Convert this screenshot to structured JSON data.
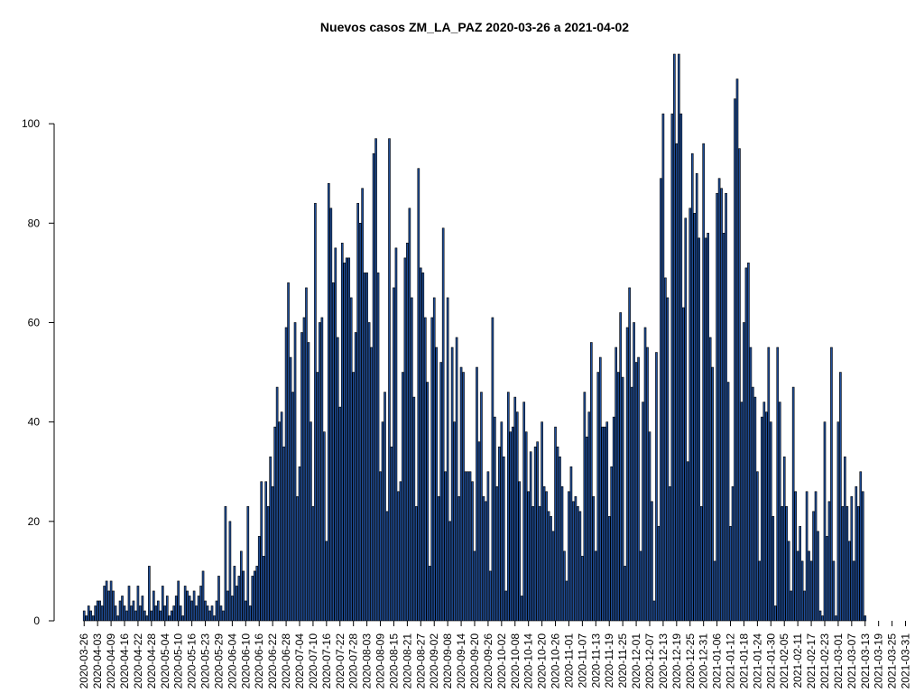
{
  "chart_data": {
    "type": "bar",
    "title": "Nuevos casos ZM_LA_PAZ 2020-03-26 a 2021-04-02",
    "xlabel": "",
    "ylabel": "",
    "ylim": [
      0,
      114
    ],
    "yticks": [
      0,
      20,
      40,
      60,
      80,
      100
    ],
    "ytick_labels": [
      "0",
      "20",
      "40",
      "60",
      "80",
      "100"
    ],
    "start_date": "2020-03-26",
    "tick_every_days": 6,
    "xtick_labels": [
      "2020-03-26",
      "2020-04-03",
      "2020-04-09",
      "2020-04-16",
      "2020-04-22",
      "2020-04-28",
      "2020-05-04",
      "2020-05-10",
      "2020-05-16",
      "2020-05-23",
      "2020-05-29",
      "2020-06-04",
      "2020-06-10",
      "2020-06-16",
      "2020-06-22",
      "2020-06-28",
      "2020-07-04",
      "2020-07-10",
      "2020-07-16",
      "2020-07-22",
      "2020-07-28",
      "2020-08-03",
      "2020-08-09",
      "2020-08-15",
      "2020-08-21",
      "2020-08-27",
      "2020-09-02",
      "2020-09-08",
      "2020-09-14",
      "2020-09-20",
      "2020-09-26",
      "2020-10-02",
      "2020-10-08",
      "2020-10-14",
      "2020-10-20",
      "2020-10-26",
      "2020-11-01",
      "2020-11-07",
      "2020-11-13",
      "2020-11-19",
      "2020-11-25",
      "2020-12-01",
      "2020-12-07",
      "2020-12-13",
      "2020-12-19",
      "2020-12-25",
      "2020-12-31",
      "2021-01-06",
      "2021-01-12",
      "2021-01-18",
      "2021-01-24",
      "2021-01-30",
      "2021-02-05",
      "2021-02-11",
      "2021-02-17",
      "2021-02-23",
      "2021-03-01",
      "2021-03-07",
      "2021-03-13",
      "2021-03-19",
      "2021-03-25",
      "2021-03-31"
    ],
    "bar_fill": "#1f4e99",
    "bar_stroke": "#000000",
    "grid": false,
    "values": [
      2,
      1,
      3,
      2,
      1,
      3,
      4,
      4,
      3,
      7,
      8,
      6,
      8,
      6,
      3,
      1,
      4,
      5,
      3,
      2,
      7,
      3,
      4,
      2,
      7,
      3,
      5,
      2,
      1,
      11,
      2,
      6,
      3,
      4,
      2,
      7,
      3,
      5,
      1,
      2,
      3,
      5,
      8,
      3,
      1,
      7,
      6,
      5,
      4,
      6,
      3,
      5,
      7,
      10,
      4,
      3,
      2,
      3,
      1,
      4,
      9,
      3,
      2,
      23,
      6,
      20,
      5,
      11,
      7,
      9,
      14,
      10,
      4,
      23,
      3,
      9,
      10,
      11,
      17,
      28,
      13,
      28,
      23,
      33,
      27,
      39,
      47,
      40,
      42,
      35,
      59,
      68,
      53,
      46,
      60,
      25,
      31,
      58,
      61,
      67,
      56,
      40,
      23,
      84,
      50,
      60,
      61,
      38,
      16,
      88,
      83,
      68,
      75,
      57,
      43,
      76,
      72,
      73,
      73,
      65,
      50,
      58,
      84,
      80,
      87,
      70,
      70,
      60,
      55,
      94,
      97,
      70,
      30,
      40,
      46,
      22,
      97,
      35,
      67,
      75,
      26,
      28,
      50,
      73,
      76,
      83,
      65,
      45,
      23,
      91,
      71,
      70,
      61,
      48,
      11,
      61,
      65,
      55,
      25,
      52,
      79,
      30,
      65,
      20,
      55,
      40,
      57,
      25,
      51,
      50,
      30,
      30,
      30,
      28,
      14,
      51,
      36,
      46,
      25,
      24,
      30,
      10,
      61,
      41,
      27,
      35,
      40,
      33,
      6,
      46,
      38,
      39,
      45,
      42,
      28,
      5,
      44,
      38,
      26,
      34,
      23,
      35,
      36,
      23,
      40,
      27,
      26,
      22,
      21,
      18,
      39,
      35,
      33,
      27,
      14,
      8,
      26,
      31,
      24,
      25,
      23,
      22,
      13,
      46,
      37,
      42,
      56,
      25,
      14,
      50,
      53,
      39,
      39,
      40,
      21,
      31,
      41,
      55,
      50,
      62,
      49,
      11,
      59,
      67,
      47,
      60,
      52,
      53,
      14,
      44,
      59,
      55,
      38,
      24,
      4,
      54,
      19,
      89,
      102,
      69,
      65,
      27,
      102,
      114,
      96,
      114,
      102,
      63,
      81,
      32,
      83,
      94,
      82,
      90,
      77,
      23,
      96,
      77,
      78,
      57,
      51,
      12,
      86,
      89,
      87,
      78,
      86,
      48,
      19,
      27,
      105,
      109,
      95,
      44,
      60,
      71,
      72,
      55,
      47,
      45,
      30,
      12,
      41,
      44,
      42,
      55,
      40,
      21,
      3,
      55,
      44,
      23,
      33,
      23,
      16,
      6,
      47,
      26,
      14,
      19,
      12,
      6,
      26,
      14,
      12,
      22,
      26,
      18,
      2,
      1,
      40,
      17,
      24,
      55,
      12,
      1,
      40,
      50,
      23,
      33,
      23,
      16,
      25,
      12,
      27,
      23,
      30,
      26,
      1
    ]
  }
}
